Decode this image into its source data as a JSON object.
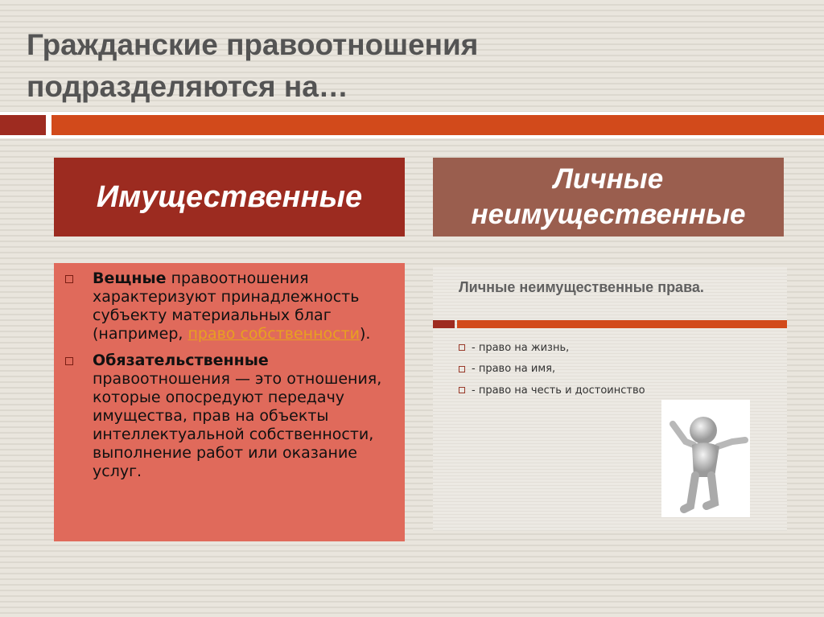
{
  "slide": {
    "title_line1": "Гражданские правоотношения",
    "title_line2": "подразделяются на…",
    "colors": {
      "dark_red": "#9c2b20",
      "orange": "#d24a1b",
      "brown": "#9a5e4e",
      "salmon": "#e06a5b",
      "link": "#e8a020"
    },
    "left": {
      "header": "Имущественные",
      "items": [
        {
          "bold": "Вещные",
          "text_before_link": " правоотношения характеризуют принадлежность субъекту материальных благ (например, ",
          "link": "право собственности",
          "text_after_link": ")."
        },
        {
          "bold": "Обязательственные",
          "text": " правоотношения — это отношения, которые опосредуют передачу имущества, прав на объекты интеллектуальной собственности, выполнение работ или оказание услуг."
        }
      ]
    },
    "right": {
      "header_line1": "Личные",
      "header_line2": "неимущественные",
      "inner_title": "Личные неимущественные права.",
      "items": [
        "- право на жизнь,",
        "- право на имя,",
        "- право на честь и достоинство"
      ],
      "image": "person-figure-arms-raised"
    }
  }
}
